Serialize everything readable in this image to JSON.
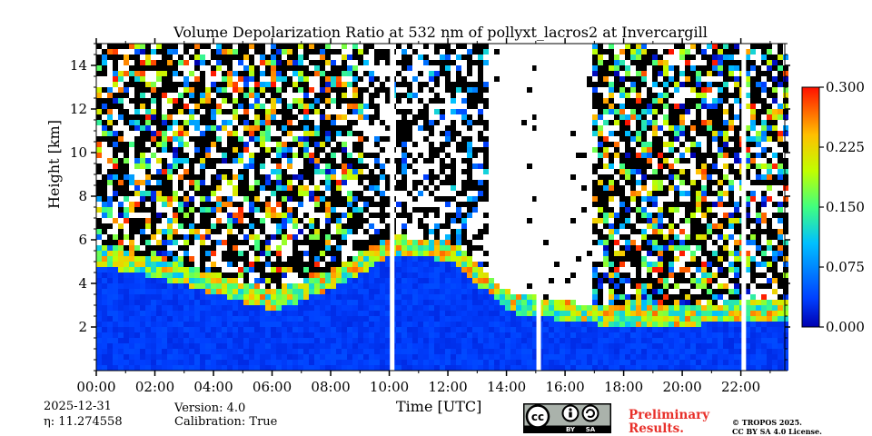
{
  "chart_data": {
    "type": "heatmap",
    "title": "Volume Depolarization Ratio at 532 nm of pollyxt_lacros2 at Invercargill",
    "xlabel": "Time [UTC]",
    "ylabel": "Height [km]",
    "x_ticks": [
      "00:00",
      "02:00",
      "04:00",
      "06:00",
      "08:00",
      "10:00",
      "12:00",
      "14:00",
      "16:00",
      "18:00",
      "20:00",
      "22:00"
    ],
    "x_tick_hours": [
      0,
      2,
      4,
      6,
      8,
      10,
      12,
      14,
      16,
      18,
      20,
      22
    ],
    "xlim_hours": [
      0,
      23.5
    ],
    "y_ticks": [
      "2",
      "4",
      "6",
      "8",
      "10",
      "12",
      "14"
    ],
    "y_tick_values": [
      2,
      4,
      6,
      8,
      10,
      12,
      14
    ],
    "ylim_km": [
      0,
      15
    ],
    "colorbar": {
      "ticks": [
        "0.000",
        "0.075",
        "0.150",
        "0.225",
        "0.300"
      ],
      "range": [
        0.0,
        0.3
      ],
      "colormap": "jet"
    },
    "data_gaps_hours": [
      10.1,
      15.1,
      22.1
    ],
    "boundary_layer_top_km": [
      {
        "hour": 0,
        "km": 5.5
      },
      {
        "hour": 2,
        "km": 5.0
      },
      {
        "hour": 4,
        "km": 4.2
      },
      {
        "hour": 6,
        "km": 3.5
      },
      {
        "hour": 8,
        "km": 4.5
      },
      {
        "hour": 10,
        "km": 6.0
      },
      {
        "hour": 12,
        "km": 5.8
      },
      {
        "hour": 14,
        "km": 3.4
      },
      {
        "hour": 16,
        "km": 3.0
      },
      {
        "hour": 18,
        "km": 2.7
      },
      {
        "hour": 20,
        "km": 2.8
      },
      {
        "hour": 22,
        "km": 3.0
      },
      {
        "hour": 23.5,
        "km": 3.1
      }
    ]
  },
  "footer": {
    "date": "2025-12-31",
    "eta": "η: 11.274558",
    "version": "Version: 4.0",
    "calibration": "Calibration: True",
    "preliminary_line1": "Preliminary",
    "preliminary_line2": "Results.",
    "copyright_line1": "© TROPOS 2025.",
    "copyright_line2": "CC BY SA 4.0 License.",
    "license_labels": [
      "cc",
      "BY",
      "SA"
    ]
  }
}
